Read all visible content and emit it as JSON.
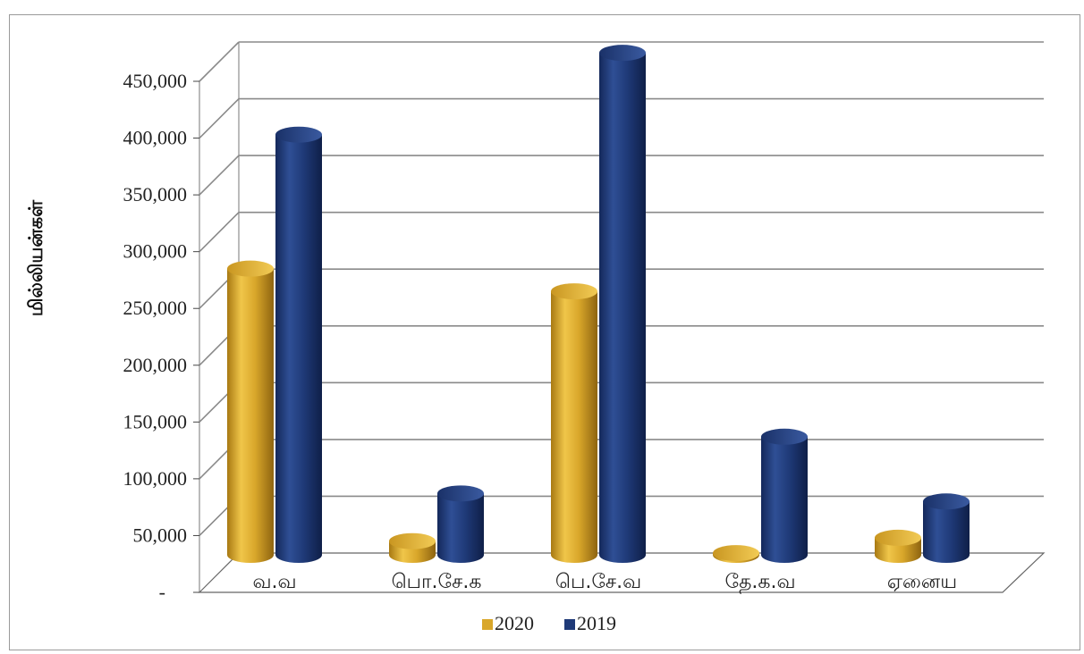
{
  "chart_data": {
    "type": "bar",
    "title": "",
    "xlabel": "",
    "ylabel": "மில்லியன்கள்",
    "categories": [
      "வ.வ",
      "பொ.சே.க",
      "பெ.சே.வ",
      "தே.க.வ",
      "ஏனைய"
    ],
    "series": [
      {
        "name": "2020",
        "values": [
          252000,
          12000,
          232000,
          1500,
          15000
        ],
        "color": "#d9a72a"
      },
      {
        "name": "2019",
        "values": [
          370000,
          54000,
          442000,
          104000,
          47000
        ],
        "color": "#1f3a78"
      }
    ],
    "ylim": [
      0,
      450000
    ],
    "yticks": [
      0,
      50000,
      100000,
      150000,
      200000,
      250000,
      300000,
      350000,
      400000,
      450000
    ],
    "ytick_labels": [
      "-",
      "50,000",
      "100,000",
      "150,000",
      "200,000",
      "250,000",
      "300,000",
      "350,000",
      "400,000",
      "450,000"
    ],
    "grid": true,
    "legend": "bottom",
    "style": "3d-cylinder"
  }
}
